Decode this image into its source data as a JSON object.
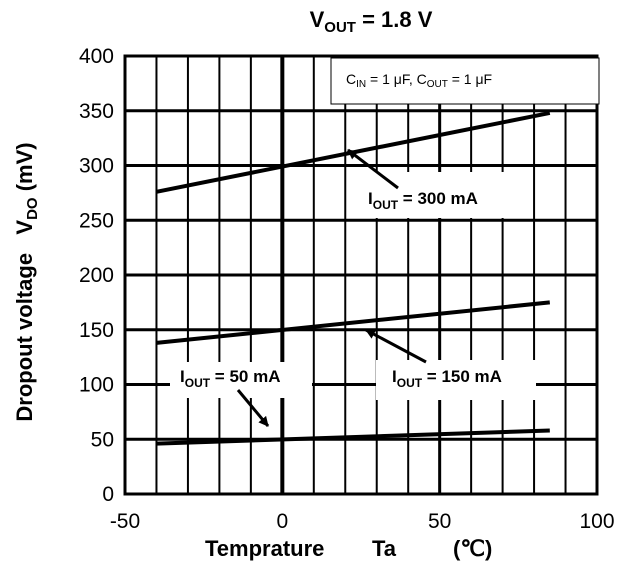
{
  "chart_data": {
    "type": "line",
    "title": {
      "main": "V",
      "sub": "OUT",
      "rest": " = 1.8 V"
    },
    "xlabel": {
      "main": "Temprature",
      "var": "Ta",
      "unit": "(℃)"
    },
    "ylabel": {
      "main": "Dropout voltage",
      "var": "V",
      "var_sub": "DO",
      "unit": "(mV)"
    },
    "xlim": [
      -50,
      100
    ],
    "ylim": [
      0,
      400
    ],
    "xticks": [
      -50,
      0,
      50,
      100
    ],
    "yticks": [
      0,
      50,
      100,
      150,
      200,
      250,
      300,
      350,
      400
    ],
    "x_minor_step": 10,
    "y_major_step": 50,
    "grid": true,
    "conditions": {
      "cin": "C",
      "cin_sub": "IN",
      "cin_val": " = 1 μF, ",
      "cout": "C",
      "cout_sub": "OUT",
      "cout_val": " = 1 μF"
    },
    "series": [
      {
        "name": "300 mA",
        "x": [
          -40,
          85
        ],
        "y": [
          276,
          348
        ]
      },
      {
        "name": "150 mA",
        "x": [
          -40,
          85
        ],
        "y": [
          138,
          175
        ]
      },
      {
        "name": "50 mA",
        "x": [
          -40,
          85
        ],
        "y": [
          46,
          58
        ]
      }
    ],
    "annotations": [
      {
        "prefix": "I",
        "sub": "OUT",
        "text": " = 300 mA"
      },
      {
        "prefix": "I",
        "sub": "OUT",
        "text": " = 150 mA"
      },
      {
        "prefix": "I",
        "sub": "OUT",
        "text": " = 50 mA"
      }
    ]
  }
}
